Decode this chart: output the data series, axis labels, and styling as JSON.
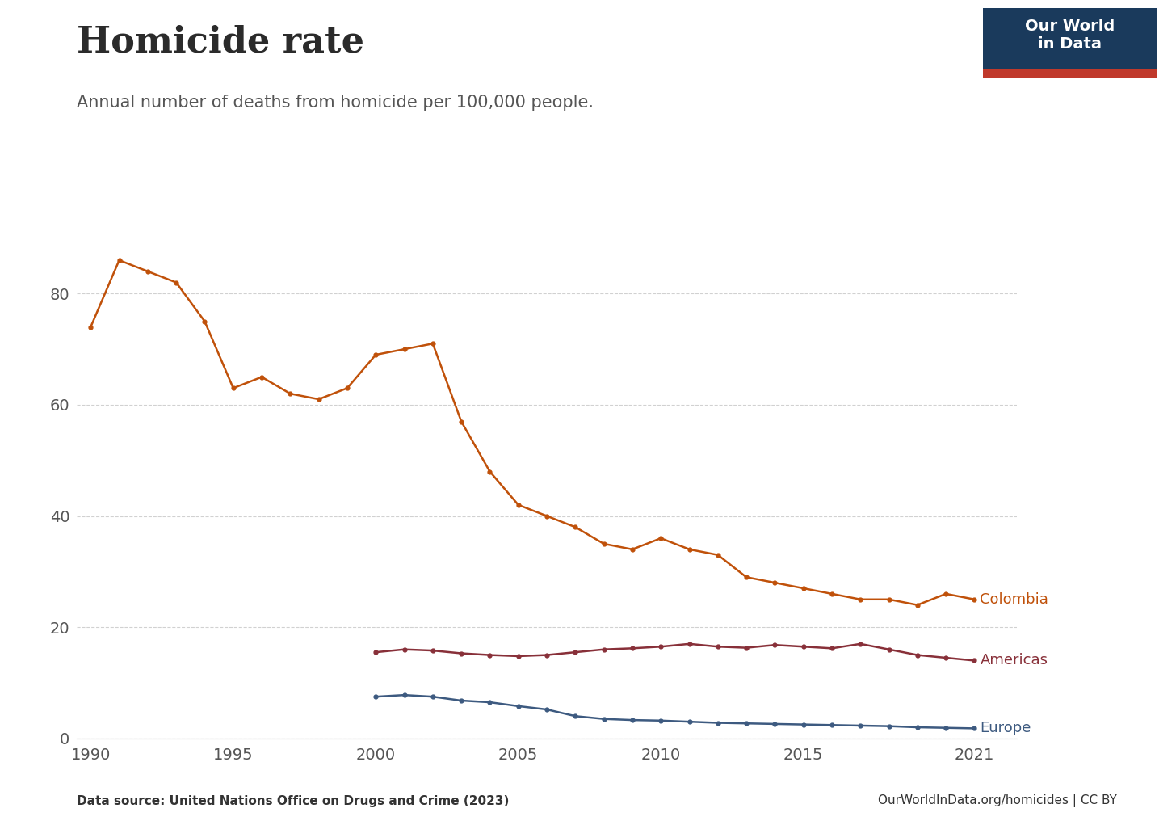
{
  "title": "Homicide rate",
  "subtitle": "Annual number of deaths from homicide per 100,000 people.",
  "footer_left": "Data source: United Nations Office on Drugs and Crime (2023)",
  "footer_right": "OurWorldInData.org/homicides | CC BY",
  "owid_line1": "Our World",
  "owid_line2": "in Data",
  "colombia": {
    "label": "Colombia",
    "color": "#C0510A",
    "years": [
      1990,
      1991,
      1992,
      1993,
      1994,
      1995,
      1996,
      1997,
      1998,
      1999,
      2000,
      2001,
      2002,
      2003,
      2004,
      2005,
      2006,
      2007,
      2008,
      2009,
      2010,
      2011,
      2012,
      2013,
      2014,
      2015,
      2016,
      2017,
      2018,
      2019,
      2020,
      2021
    ],
    "values": [
      74.0,
      86.0,
      84.0,
      82.0,
      75.0,
      63.0,
      65.0,
      62.0,
      61.0,
      63.0,
      69.0,
      70.0,
      71.0,
      57.0,
      48.0,
      42.0,
      40.0,
      38.0,
      35.0,
      34.0,
      36.0,
      34.0,
      33.0,
      29.0,
      28.0,
      27.0,
      26.0,
      25.0,
      25.0,
      24.0,
      26.0,
      25.0
    ]
  },
  "americas": {
    "label": "Americas",
    "color": "#883039",
    "years": [
      2000,
      2001,
      2002,
      2003,
      2004,
      2005,
      2006,
      2007,
      2008,
      2009,
      2010,
      2011,
      2012,
      2013,
      2014,
      2015,
      2016,
      2017,
      2018,
      2019,
      2020,
      2021
    ],
    "values": [
      15.5,
      16.0,
      15.8,
      15.3,
      15.0,
      14.8,
      15.0,
      15.5,
      16.0,
      16.2,
      16.5,
      17.0,
      16.5,
      16.3,
      16.8,
      16.5,
      16.2,
      17.0,
      16.0,
      15.0,
      14.5,
      14.0
    ]
  },
  "europe": {
    "label": "Europe",
    "color": "#3D5A80",
    "years": [
      2000,
      2001,
      2002,
      2003,
      2004,
      2005,
      2006,
      2007,
      2008,
      2009,
      2010,
      2011,
      2012,
      2013,
      2014,
      2015,
      2016,
      2017,
      2018,
      2019,
      2020,
      2021
    ],
    "values": [
      7.5,
      7.8,
      7.5,
      6.8,
      6.5,
      5.8,
      5.2,
      4.0,
      3.5,
      3.3,
      3.2,
      3.0,
      2.8,
      2.7,
      2.6,
      2.5,
      2.4,
      2.3,
      2.2,
      2.0,
      1.9,
      1.8
    ]
  },
  "ylim": [
    0,
    92
  ],
  "yticks": [
    0,
    20,
    40,
    60,
    80
  ],
  "xlim": [
    1989.5,
    2022.5
  ],
  "xticks": [
    1990,
    1995,
    2000,
    2005,
    2010,
    2015,
    2021
  ],
  "bg_color": "#ffffff",
  "grid_color": "#cccccc",
  "title_fontsize": 32,
  "subtitle_fontsize": 15,
  "label_fontsize": 13,
  "axis_fontsize": 13,
  "owid_bg_color": "#1a3a5c",
  "owid_red_color": "#c0392b"
}
